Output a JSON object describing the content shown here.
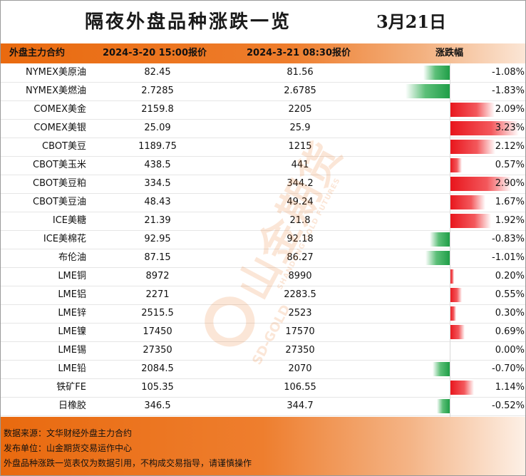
{
  "header": {
    "title": "隔夜外盘品种涨跌一览",
    "date": "3月21日"
  },
  "columns": {
    "name": "外盘主力合约",
    "price_prev": "2024-3-20 15:00报价",
    "price_curr": "2024-3-21 08:30报价",
    "change": "涨跌幅"
  },
  "colors": {
    "accent": "#e96a0f",
    "up": "#e8141b",
    "down": "#1f9e47"
  },
  "rows": [
    {
      "name": "NYMEX美原油",
      "prev": "82.45",
      "curr": "81.56",
      "pct": "-1.08%",
      "value": -1.08
    },
    {
      "name": "NYMEX美燃油",
      "prev": "2.7285",
      "curr": "2.6785",
      "pct": "-1.83%",
      "value": -1.83
    },
    {
      "name": "COMEX美金",
      "prev": "2159.8",
      "curr": "2205",
      "pct": "2.09%",
      "value": 2.09
    },
    {
      "name": "COMEX美银",
      "prev": "25.09",
      "curr": "25.9",
      "pct": "3.23%",
      "value": 3.23
    },
    {
      "name": "CBOT美豆",
      "prev": "1189.75",
      "curr": "1215",
      "pct": "2.12%",
      "value": 2.12
    },
    {
      "name": "CBOT美玉米",
      "prev": "438.5",
      "curr": "441",
      "pct": "0.57%",
      "value": 0.57
    },
    {
      "name": "CBOT美豆粕",
      "prev": "334.5",
      "curr": "344.2",
      "pct": "2.90%",
      "value": 2.9
    },
    {
      "name": "CBOT美豆油",
      "prev": "48.43",
      "curr": "49.24",
      "pct": "1.67%",
      "value": 1.67
    },
    {
      "name": "ICE美糖",
      "prev": "21.39",
      "curr": "21.8",
      "pct": "1.92%",
      "value": 1.92
    },
    {
      "name": "ICE美棉花",
      "prev": "92.95",
      "curr": "92.18",
      "pct": "-0.83%",
      "value": -0.83
    },
    {
      "name": "布伦油",
      "prev": "87.15",
      "curr": "86.27",
      "pct": "-1.01%",
      "value": -1.01
    },
    {
      "name": "LME铜",
      "prev": "8972",
      "curr": "8990",
      "pct": "0.20%",
      "value": 0.2
    },
    {
      "name": "LME铝",
      "prev": "2271",
      "curr": "2283.5",
      "pct": "0.55%",
      "value": 0.55
    },
    {
      "name": "LME锌",
      "prev": "2515.5",
      "curr": "2523",
      "pct": "0.30%",
      "value": 0.3
    },
    {
      "name": "LME镍",
      "prev": "17450",
      "curr": "17570",
      "pct": "0.69%",
      "value": 0.69
    },
    {
      "name": "LME锡",
      "prev": "27350",
      "curr": "27350",
      "pct": "0.00%",
      "value": 0.0
    },
    {
      "name": "LME铅",
      "prev": "2084.5",
      "curr": "2070",
      "pct": "-0.70%",
      "value": -0.7
    },
    {
      "name": "铁矿FE",
      "prev": "105.35",
      "curr": "106.55",
      "pct": "1.14%",
      "value": 1.14
    },
    {
      "name": "日橡胶",
      "prev": "346.5",
      "curr": "344.7",
      "pct": "-0.52%",
      "value": -0.52
    }
  ],
  "watermark": {
    "logo_cn": "山金期货",
    "logo_en": "SD-GOLD",
    "logo_en2": "SHANDONG GOLD FUTURES",
    "icon": "sd-gold-logo-icon"
  },
  "footer": {
    "source": "数据来源：文华财经外盘主力合约",
    "publisher": "发布单位：山金期货交易运作中心",
    "disclaimer": "外盘品种涨跌一览表仅为数据引用，不构成交易指导，请谨慎操作"
  }
}
